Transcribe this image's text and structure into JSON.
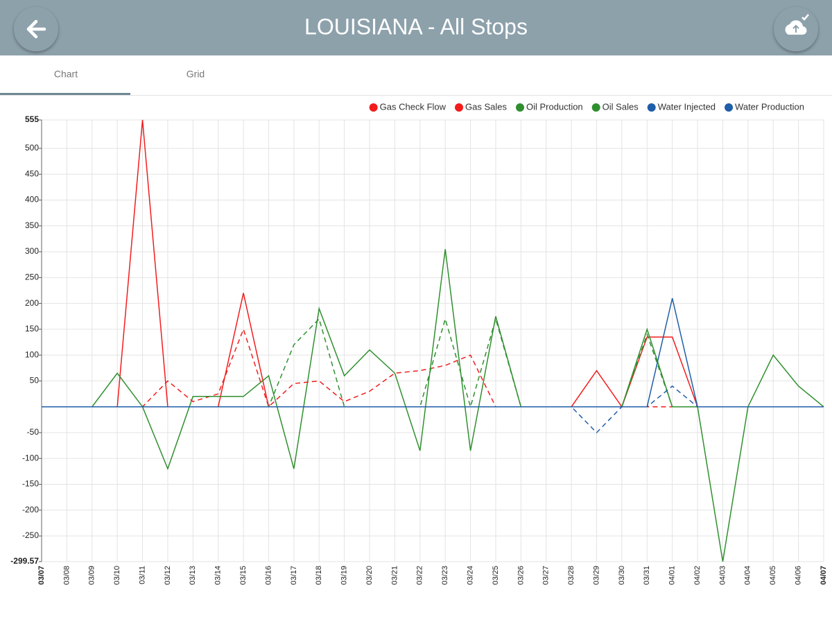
{
  "header": {
    "title": "LOUISIANA - All Stops"
  },
  "tabs": [
    "Chart",
    "Grid"
  ],
  "chart_data": {
    "type": "line",
    "categories": [
      "03/07",
      "03/08",
      "03/09",
      "03/10",
      "03/11",
      "03/12",
      "03/13",
      "03/14",
      "03/15",
      "03/16",
      "03/17",
      "03/18",
      "03/19",
      "03/20",
      "03/21",
      "03/22",
      "03/23",
      "03/24",
      "03/25",
      "03/26",
      "03/27",
      "03/28",
      "03/29",
      "03/30",
      "03/31",
      "04/01",
      "04/02",
      "04/03",
      "04/04",
      "04/05",
      "04/06",
      "04/07"
    ],
    "ylim": [
      -299.57,
      555
    ],
    "yticks": [
      -299.57,
      -250,
      -200,
      -150,
      -100,
      -50,
      50,
      100,
      150,
      200,
      250,
      300,
      350,
      400,
      450,
      500,
      555
    ],
    "grid": true,
    "legend": "top-right",
    "series": [
      {
        "name": "Gas Check Flow",
        "color": "#f21c1c",
        "dash": false,
        "values": [
          0,
          0,
          0,
          0,
          555,
          0,
          0,
          0,
          220,
          0,
          0,
          0,
          0,
          0,
          0,
          0,
          0,
          0,
          0,
          0,
          0,
          0,
          70,
          0,
          135,
          135,
          0,
          0,
          0,
          0,
          0,
          0
        ]
      },
      {
        "name": "Gas Sales",
        "color": "#f21c1c",
        "dash": true,
        "values": [
          0,
          0,
          0,
          0,
          0,
          50,
          10,
          25,
          150,
          0,
          45,
          50,
          10,
          30,
          65,
          70,
          80,
          100,
          0,
          0,
          0,
          0,
          0,
          0,
          0,
          0,
          0,
          0,
          0,
          0,
          0,
          0
        ]
      },
      {
        "name": "Oil Production",
        "color": "#2f8f2f",
        "dash": false,
        "values": [
          0,
          0,
          0,
          65,
          0,
          -120,
          20,
          20,
          20,
          60,
          -120,
          190,
          60,
          110,
          65,
          -85,
          305,
          -85,
          175,
          0,
          0,
          0,
          0,
          0,
          150,
          0,
          0,
          -299.57,
          0,
          100,
          40,
          0
        ]
      },
      {
        "name": "Oil Sales",
        "color": "#2f8f2f",
        "dash": true,
        "values": [
          0,
          0,
          0,
          0,
          0,
          0,
          0,
          0,
          0,
          0,
          120,
          170,
          0,
          0,
          0,
          0,
          170,
          0,
          170,
          0,
          0,
          0,
          0,
          0,
          140,
          0,
          0,
          0,
          0,
          0,
          0,
          0
        ]
      },
      {
        "name": "Water Injected",
        "color": "#1f5ea8",
        "dash": false,
        "values": [
          0,
          0,
          0,
          0,
          0,
          0,
          0,
          0,
          0,
          0,
          0,
          0,
          0,
          0,
          0,
          0,
          0,
          0,
          0,
          0,
          0,
          0,
          0,
          0,
          0,
          210,
          0,
          0,
          0,
          0,
          0,
          0
        ]
      },
      {
        "name": "Water Production",
        "color": "#1f5ea8",
        "dash": true,
        "values": [
          0,
          0,
          0,
          0,
          0,
          0,
          0,
          0,
          0,
          0,
          0,
          0,
          0,
          0,
          0,
          0,
          0,
          0,
          0,
          0,
          0,
          0,
          -50,
          0,
          0,
          40,
          0,
          0,
          0,
          0,
          0,
          0
        ]
      }
    ]
  }
}
